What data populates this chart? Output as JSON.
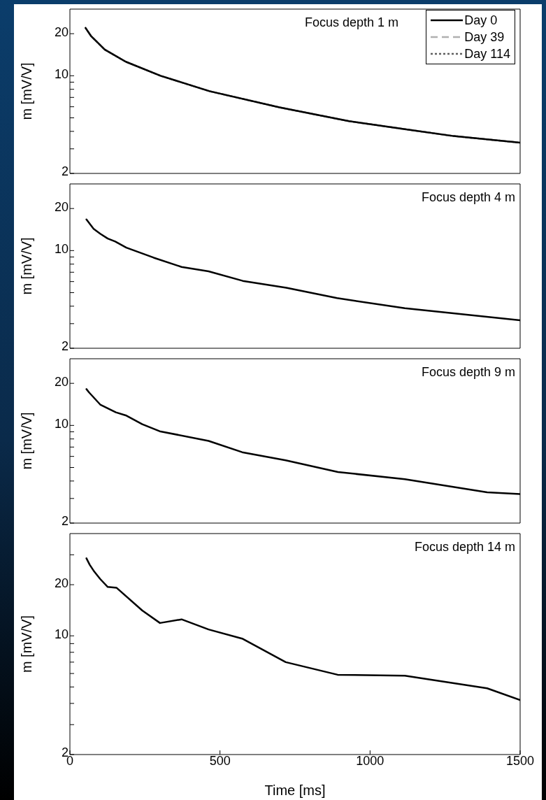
{
  "chart_data": [
    {
      "type": "line",
      "ylabel": "m [mV/V]",
      "log": "y",
      "xlim": [
        0,
        1500
      ],
      "xticks": [
        0,
        500,
        1000,
        1500
      ],
      "ylim": [
        2,
        30
      ],
      "yticks": [
        2,
        {
          "value": 3,
          "label": null
        },
        {
          "value": 4,
          "label": null
        },
        {
          "value": 5,
          "label": null
        },
        {
          "value": 6,
          "label": null
        },
        {
          "value": 7,
          "label": null
        },
        {
          "value": 8,
          "label": null
        },
        {
          "value": 9,
          "label": null
        },
        10,
        20
      ],
      "tick_labels": "y",
      "legend": "top right",
      "annotations": [
        "Focus depth 1 m"
      ],
      "series": [
        {
          "name": "Day 0",
          "color": "#000000",
          "line_style": "solid",
          "x": [
            52,
            70,
            116,
            186,
            302,
            465,
            698,
            930,
            1116,
            1279,
            1500
          ],
          "values": [
            22.0,
            19.3,
            15.4,
            12.6,
            10.0,
            7.76,
            5.94,
            4.73,
            4.15,
            3.7,
            3.32
          ]
        },
        {
          "name": "Day 39",
          "color": "#b0b0b0",
          "line_style": "dashed",
          "x": [
            52,
            70,
            116,
            186,
            302,
            465,
            698,
            930,
            1116,
            1279,
            1500
          ],
          "values": [
            22.0,
            19.3,
            15.4,
            12.6,
            10.0,
            7.76,
            5.94,
            4.73,
            4.15,
            3.7,
            3.32
          ]
        },
        {
          "name": "Day 114",
          "color": "#606060",
          "line_style": "dotted",
          "x": [
            52,
            70,
            116,
            186,
            302,
            465,
            698,
            930,
            1116,
            1279,
            1500
          ],
          "values": [
            22.0,
            19.3,
            15.4,
            12.6,
            10.0,
            7.76,
            5.94,
            4.73,
            4.15,
            3.7,
            3.32
          ]
        }
      ]
    },
    {
      "type": "line",
      "ylabel": "m [mV/V]",
      "log": "y",
      "xlim": [
        0,
        1500
      ],
      "xticks": [
        0,
        500,
        1000,
        1500
      ],
      "ylim": [
        2,
        30
      ],
      "yticks": [
        2,
        {
          "value": 3,
          "label": null
        },
        {
          "value": 4,
          "label": null
        },
        {
          "value": 5,
          "label": null
        },
        {
          "value": 6,
          "label": null
        },
        {
          "value": 7,
          "label": null
        },
        {
          "value": 8,
          "label": null
        },
        {
          "value": 9,
          "label": null
        },
        10,
        20
      ],
      "tick_labels": "y",
      "annotations": [
        "Focus depth 4 m"
      ],
      "series": [
        {
          "color": "#000000",
          "line_style": "solid",
          "x": [
            55,
            79,
            101,
            126,
            151,
            188,
            279,
            372,
            462,
            576,
            721,
            890,
            1116,
            1500
          ],
          "values": [
            16.7,
            14.3,
            13.2,
            12.2,
            11.6,
            10.5,
            8.9,
            7.64,
            7.1,
            6.07,
            5.42,
            4.57,
            3.87,
            3.17
          ]
        }
      ]
    },
    {
      "type": "line",
      "ylabel": "m [mV/V]",
      "log": "y",
      "xlim": [
        0,
        1500
      ],
      "xticks": [
        0,
        500,
        1000,
        1500
      ],
      "ylim": [
        2,
        30
      ],
      "yticks": [
        2,
        {
          "value": 3,
          "label": null
        },
        {
          "value": 4,
          "label": null
        },
        {
          "value": 5,
          "label": null
        },
        {
          "value": 6,
          "label": null
        },
        {
          "value": 7,
          "label": null
        },
        {
          "value": 8,
          "label": null
        },
        {
          "value": 9,
          "label": null
        },
        10,
        20
      ],
      "tick_labels": "y",
      "annotations": [
        "Focus depth 9 m"
      ],
      "series": [
        {
          "color": "#000000",
          "line_style": "solid",
          "x": [
            55,
            64,
            101,
            153,
            186,
            241,
            299,
            462,
            574,
            719,
            893,
            1116,
            1390,
            1500
          ],
          "values": [
            18.2,
            17.2,
            14.1,
            12.4,
            11.8,
            10.2,
            9.08,
            7.75,
            6.43,
            5.62,
            4.64,
            4.12,
            3.32,
            3.23
          ]
        }
      ]
    },
    {
      "type": "line",
      "xlabel": "Time [ms]",
      "ylabel": "m [mV/V]",
      "log": "y",
      "xlim": [
        0,
        1500
      ],
      "xticks": [
        0,
        500,
        1000,
        1500
      ],
      "ylim": [
        2,
        40
      ],
      "yticks": [
        2,
        {
          "value": 3,
          "label": null
        },
        {
          "value": 4,
          "label": null
        },
        {
          "value": 5,
          "label": null
        },
        {
          "value": 6,
          "label": null
        },
        {
          "value": 7,
          "label": null
        },
        {
          "value": 8,
          "label": null
        },
        {
          "value": 9,
          "label": null
        },
        10,
        20,
        {
          "value": 30,
          "label": null
        }
      ],
      "annotations": [
        "Focus depth 14 m"
      ],
      "series": [
        {
          "color": "#000000",
          "line_style": "solid",
          "x": [
            55,
            66,
            81,
            101,
            126,
            155,
            241,
            300,
            372,
            462,
            576,
            719,
            892,
            1116,
            1390,
            1500
          ],
          "values": [
            28.6,
            26.2,
            23.9,
            21.6,
            19.4,
            19.2,
            14.1,
            11.9,
            12.5,
            10.9,
            9.6,
            7.0,
            5.9,
            5.82,
            4.91,
            4.19
          ]
        }
      ]
    }
  ]
}
